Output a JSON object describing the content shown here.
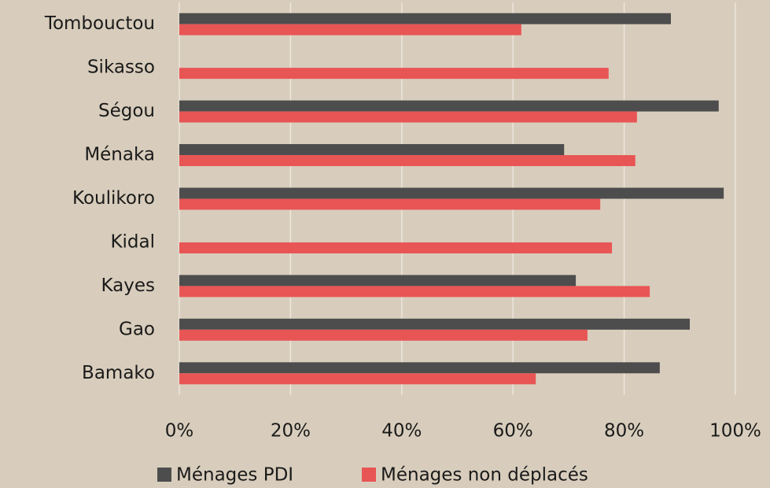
{
  "chart_data": {
    "type": "hbar",
    "categories": [
      "Tombouctou",
      "Sikasso",
      "Ségou",
      "Ménaka",
      "Koulikoro",
      "Kidal",
      "Kayes",
      "Gao",
      "Bamako"
    ],
    "series": [
      {
        "name": "Ménages PDI",
        "color": "#4d4d4d",
        "values": [
          88.4,
          null,
          97,
          69.2,
          97.9,
          null,
          71.3,
          91.8,
          86.4
        ]
      },
      {
        "name": "Ménages non déplacés",
        "color": "#e85555",
        "values": [
          61.5,
          77.2,
          82.3,
          82,
          75.7,
          77.8,
          84.6,
          73.4,
          64.1
        ]
      }
    ],
    "xlim": [
      0,
      100
    ],
    "xticks": [
      {
        "value": 0,
        "label": "0%"
      },
      {
        "value": 20,
        "label": "20%"
      },
      {
        "value": 40,
        "label": "40%"
      },
      {
        "value": 60,
        "label": "60%"
      },
      {
        "value": 80,
        "label": "80%"
      },
      {
        "value": 100,
        "label": "100%"
      }
    ],
    "grid": true,
    "legend": "bottom"
  }
}
